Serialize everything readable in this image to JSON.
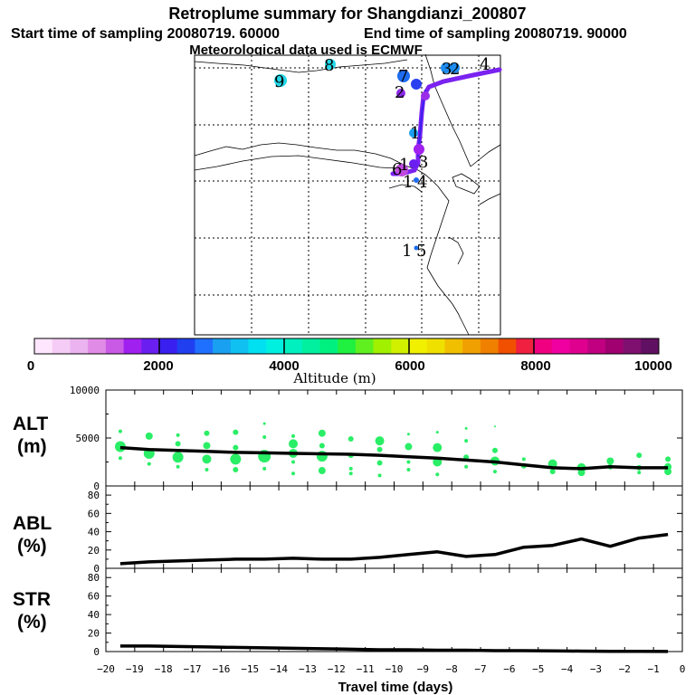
{
  "header": {
    "title": "Retroplume summary for Shangdianzi_200807",
    "start_label": "Start time of sampling 20080719. 60000",
    "end_label": "End time of sampling 20080719. 90000",
    "met_label": "Meteorological data used is ECMWF"
  },
  "colorbar": {
    "label": "Altitude (m)",
    "ticks": [
      "0",
      "2000",
      "4000",
      "6000",
      "8000",
      "10000"
    ],
    "colors": [
      "#ffe6ff",
      "#f5ccf5",
      "#ebb3f0",
      "#e08ce6",
      "#c85ae6",
      "#a020f0",
      "#6a1ff0",
      "#3a20f0",
      "#2040f0",
      "#2070ff",
      "#1aa0f0",
      "#10c0f0",
      "#00e0f0",
      "#00f0e0",
      "#00f0c0",
      "#00f0a0",
      "#00f080",
      "#20f040",
      "#60f020",
      "#a0f000",
      "#d0f000",
      "#f0f000",
      "#f0e000",
      "#f0c000",
      "#f0a000",
      "#f08000",
      "#f05000",
      "#f02040",
      "#f00080",
      "#f000a0",
      "#e00090",
      "#c00080",
      "#a00070",
      "#801070",
      "#601060"
    ]
  },
  "map": {
    "labels": [
      "8",
      "9",
      "7",
      "2",
      "3",
      "2",
      "4",
      "1",
      "1",
      "6",
      "3",
      "1",
      "4",
      "1",
      "5"
    ],
    "track_color": "#7a22f0"
  },
  "chart_data": [
    {
      "type": "scatter",
      "name": "ALT",
      "panel_label_1": "ALT",
      "panel_label_2": "(m)",
      "ylim": [
        0,
        10000
      ],
      "yticks": [
        "10000",
        "5000",
        "0"
      ],
      "line_x": [
        -19.5,
        -18.5,
        -17.5,
        -16.5,
        -15.5,
        -14.5,
        -13.5,
        -12.5,
        -11.5,
        -10.5,
        -9.5,
        -8.5,
        -7.5,
        -6.5,
        -5.5,
        -4.5,
        -3.5,
        -2.5,
        -1.5,
        -0.5
      ],
      "line_y": [
        4000,
        3800,
        3700,
        3600,
        3500,
        3450,
        3400,
        3350,
        3300,
        3200,
        3050,
        2900,
        2700,
        2500,
        2200,
        1900,
        1800,
        2000,
        1900,
        1900
      ],
      "scatter_color": "#2aee66",
      "points": [
        [
          -19.5,
          5700,
          2
        ],
        [
          -19.5,
          4100,
          6
        ],
        [
          -19.5,
          2900,
          2
        ],
        [
          -18.5,
          5200,
          4
        ],
        [
          -18.5,
          3400,
          6
        ],
        [
          -18.5,
          2300,
          2
        ],
        [
          -17.5,
          5300,
          2
        ],
        [
          -17.5,
          4400,
          3
        ],
        [
          -17.5,
          3000,
          6
        ],
        [
          -17.5,
          2000,
          2
        ],
        [
          -16.5,
          5500,
          3
        ],
        [
          -16.5,
          4200,
          4
        ],
        [
          -16.5,
          2800,
          5
        ],
        [
          -16.5,
          1700,
          2
        ],
        [
          -15.5,
          5600,
          3
        ],
        [
          -15.5,
          4000,
          3
        ],
        [
          -15.5,
          2800,
          6
        ],
        [
          -15.5,
          1700,
          3
        ],
        [
          -14.5,
          6500,
          1.5
        ],
        [
          -14.5,
          5100,
          2
        ],
        [
          -14.5,
          3100,
          7
        ],
        [
          -14.5,
          1800,
          2
        ],
        [
          -13.5,
          5200,
          2
        ],
        [
          -13.5,
          4400,
          5
        ],
        [
          -13.5,
          3400,
          5
        ],
        [
          -13.5,
          2500,
          2
        ],
        [
          -13.5,
          1300,
          2
        ],
        [
          -12.5,
          5500,
          4
        ],
        [
          -12.5,
          4200,
          3
        ],
        [
          -12.5,
          3100,
          6
        ],
        [
          -12.5,
          1600,
          4
        ],
        [
          -11.5,
          4900,
          3
        ],
        [
          -11.5,
          3200,
          3
        ],
        [
          -11.5,
          1800,
          2
        ],
        [
          -11.5,
          1300,
          2
        ],
        [
          -10.5,
          4700,
          5
        ],
        [
          -10.5,
          3800,
          3
        ],
        [
          -10.5,
          2400,
          3
        ],
        [
          -10.5,
          1100,
          2
        ],
        [
          -9.5,
          5400,
          1.5
        ],
        [
          -9.5,
          4100,
          4
        ],
        [
          -9.5,
          2500,
          2
        ],
        [
          -9.5,
          1700,
          2
        ],
        [
          -8.5,
          5600,
          1.5
        ],
        [
          -8.5,
          4000,
          5
        ],
        [
          -8.5,
          2500,
          5
        ],
        [
          -8.5,
          1200,
          2
        ],
        [
          -7.5,
          6000,
          1.5
        ],
        [
          -7.5,
          4700,
          2
        ],
        [
          -7.5,
          3000,
          3
        ],
        [
          -7.5,
          2000,
          2
        ],
        [
          -6.5,
          6200,
          1
        ],
        [
          -6.5,
          3700,
          3
        ],
        [
          -6.5,
          2600,
          5
        ],
        [
          -6.5,
          1500,
          2
        ],
        [
          -5.5,
          2800,
          2
        ],
        [
          -5.5,
          2100,
          3
        ],
        [
          -4.5,
          2300,
          5
        ],
        [
          -4.5,
          1500,
          3
        ],
        [
          -3.5,
          1900,
          5
        ],
        [
          -3.5,
          1400,
          4
        ],
        [
          -2.5,
          2600,
          4
        ],
        [
          -2.5,
          2000,
          3
        ],
        [
          -1.5,
          3200,
          3
        ],
        [
          -1.5,
          1900,
          3
        ],
        [
          -1.5,
          1400,
          2
        ],
        [
          -0.5,
          2800,
          3
        ],
        [
          -0.5,
          2000,
          4
        ],
        [
          -0.5,
          1500,
          4
        ]
      ]
    },
    {
      "type": "line",
      "name": "ABL",
      "panel_label_1": "ABL",
      "panel_label_2": "(%)",
      "ylim": [
        0,
        90
      ],
      "yticks": [
        "80",
        "60",
        "40",
        "20",
        "0"
      ],
      "x": [
        -19.5,
        -18.5,
        -17.5,
        -16.5,
        -15.5,
        -14.5,
        -13.5,
        -12.5,
        -11.5,
        -10.5,
        -9.5,
        -8.5,
        -7.5,
        -6.5,
        -5.5,
        -4.5,
        -3.5,
        -2.5,
        -1.5,
        -0.5
      ],
      "y": [
        5,
        7,
        8,
        9,
        10,
        10,
        11,
        10,
        10,
        12,
        15,
        18,
        13,
        15,
        23,
        25,
        32,
        24,
        33,
        37
      ]
    },
    {
      "type": "line",
      "name": "STR",
      "panel_label_1": "STR",
      "panel_label_2": "(%)",
      "ylim": [
        0,
        90
      ],
      "yticks": [
        "80",
        "60",
        "40",
        "20",
        "0"
      ],
      "x": [
        -19.5,
        -18.5,
        -17.5,
        -16.5,
        -15.5,
        -14.5,
        -13.5,
        -12.5,
        -11.5,
        -10.5,
        -9.5,
        -8.5,
        -7.5,
        -6.5,
        -5.5,
        -4.5,
        -3.5,
        -2.5,
        -1.5,
        -0.5
      ],
      "y": [
        6,
        6,
        5.5,
        5,
        4.5,
        4,
        3.5,
        3,
        2.5,
        2,
        2,
        1.5,
        1.5,
        1,
        1,
        0.8,
        0.5,
        0.3,
        0.2,
        0.1
      ]
    }
  ],
  "xaxis": {
    "label": "Travel time (days)",
    "ticks": [
      "−20",
      "−19",
      "−18",
      "−17",
      "−16",
      "−15",
      "−14",
      "−13",
      "−12",
      "−11",
      "−10",
      "−9",
      "−8",
      "−7",
      "−6",
      "−5",
      "−4",
      "−3",
      "−2",
      "−1",
      "0"
    ]
  }
}
